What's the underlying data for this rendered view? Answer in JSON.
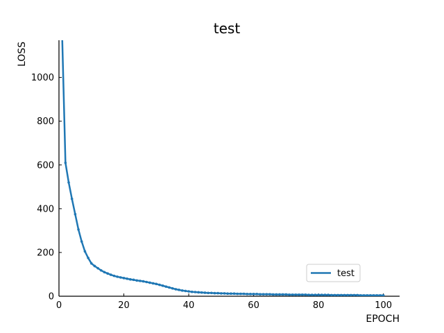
{
  "chart_data": {
    "type": "line",
    "title": "test",
    "xlabel": "EPOCH",
    "ylabel": "LOSS",
    "xlim": [
      0,
      105
    ],
    "ylim": [
      0,
      1170
    ],
    "xticks": [
      0,
      20,
      40,
      60,
      80,
      100
    ],
    "yticks": [
      0,
      200,
      400,
      600,
      800,
      1000
    ],
    "grid": false,
    "legend_position": "lower-right",
    "series": [
      {
        "name": "test",
        "color": "#1f77b4",
        "marker": "point",
        "x": [
          1,
          2,
          3,
          4,
          5,
          6,
          7,
          8,
          9,
          10,
          11,
          12,
          13,
          14,
          15,
          16,
          17,
          18,
          19,
          20,
          21,
          22,
          23,
          24,
          25,
          26,
          27,
          28,
          29,
          30,
          31,
          32,
          33,
          34,
          35,
          36,
          37,
          38,
          39,
          40,
          41,
          42,
          43,
          44,
          45,
          46,
          47,
          48,
          49,
          50,
          51,
          52,
          53,
          54,
          55,
          56,
          57,
          58,
          59,
          60,
          61,
          62,
          63,
          64,
          65,
          66,
          67,
          68,
          69,
          70,
          71,
          72,
          73,
          74,
          75,
          76,
          77,
          78,
          79,
          80,
          81,
          82,
          83,
          84,
          85,
          86,
          87,
          88,
          89,
          90,
          91,
          92,
          93,
          94,
          95,
          96,
          97,
          98,
          99,
          100
        ],
        "y": [
          1180,
          610,
          520,
          445,
          375,
          305,
          250,
          205,
          175,
          150,
          138,
          128,
          118,
          110,
          104,
          98,
          93,
          89,
          86,
          83,
          80,
          77,
          75,
          72,
          70,
          68,
          65,
          62,
          59,
          56,
          52,
          48,
          44,
          40,
          36,
          32,
          29,
          26,
          24,
          22,
          20,
          19,
          18,
          17,
          16,
          15,
          15,
          14,
          14,
          13,
          13,
          12,
          12,
          12,
          11,
          11,
          11,
          10,
          10,
          10,
          10,
          9,
          9,
          9,
          9,
          8,
          8,
          8,
          8,
          8,
          7,
          7,
          7,
          7,
          7,
          7,
          6,
          6,
          6,
          6,
          6,
          6,
          6,
          5,
          5,
          5,
          5,
          5,
          5,
          5,
          5,
          5,
          4,
          4,
          4,
          4,
          4,
          4,
          4,
          4
        ]
      }
    ]
  }
}
